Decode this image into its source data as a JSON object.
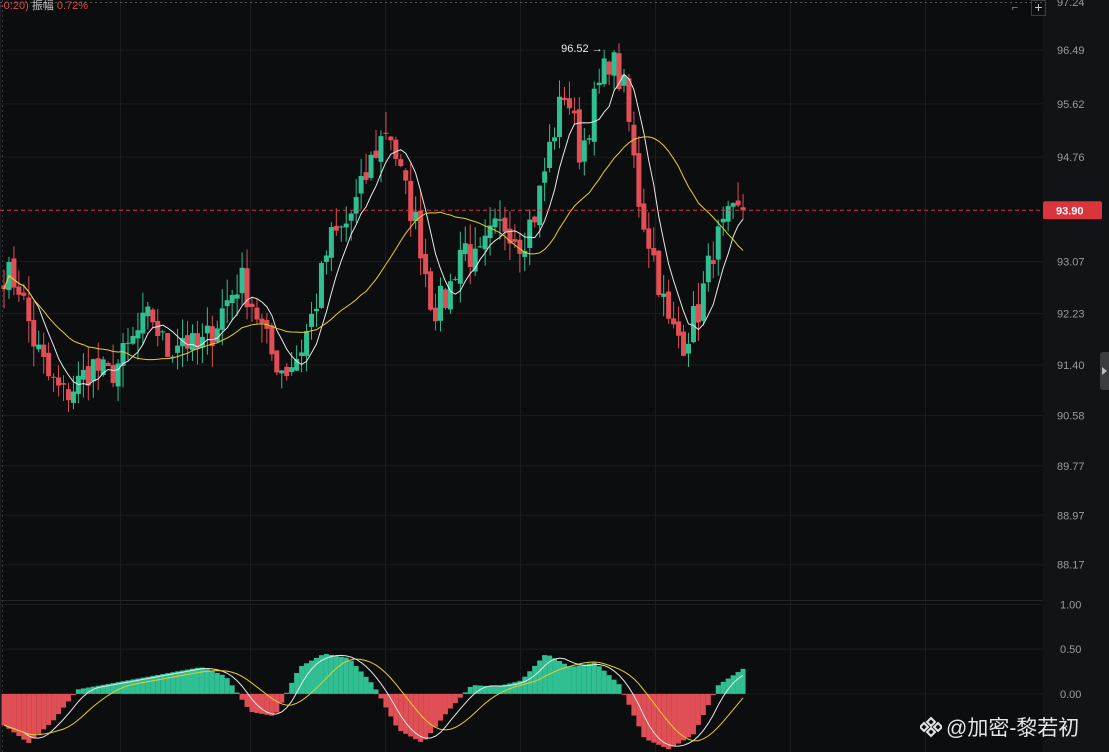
{
  "header": {
    "prefix": "-0:20)",
    "amp_label": "振幅",
    "amp_value": "0.72%"
  },
  "watermark": {
    "text": "@加密-黎若初"
  },
  "colors": {
    "up": "#2fbf92",
    "down": "#e04f55",
    "ma_fast": "#e8e8e8",
    "ma_slow": "#e6cf2a",
    "price_tag": "#d9353b",
    "grid": "#1b1d21",
    "text": "#9b9b9b"
  },
  "icons": {
    "add": "plus-icon",
    "tool": "crop-icon",
    "panel": "chevron-right-icon",
    "logo": "binance-logo-icon"
  },
  "chart_data": [
    {
      "type": "candlestick",
      "y_ticks": [
        96.49,
        95.62,
        94.76,
        93.07,
        92.23,
        91.4,
        90.58,
        89.77,
        88.97,
        88.17
      ],
      "top_tick": "97.24",
      "ylim": [
        87.6,
        97.3
      ],
      "high_marker": {
        "label": "96.52",
        "value": 96.52
      },
      "current_price": {
        "label": "93.90",
        "value": 93.9
      },
      "grid": true,
      "ohlc_anchor_closes": [
        92.9,
        92.7,
        91.8,
        91.2,
        90.9,
        91.1,
        91.4,
        91.2,
        91.5,
        91.9,
        92.2,
        91.6,
        91.9,
        91.6,
        91.9,
        92.4,
        92.8,
        92.3,
        91.6,
        91.3,
        91.6,
        92.3,
        93.4,
        93.6,
        94.1,
        94.8,
        95.3,
        94.3,
        93.6,
        92.3,
        92.5,
        93.4,
        93.0,
        93.5,
        93.7,
        93.4,
        93.9,
        95.0,
        95.9,
        94.8,
        95.7,
        96.4,
        95.8,
        94.0,
        93.1,
        92.0,
        91.8,
        92.3,
        93.3,
        93.7,
        93.9
      ]
    },
    {
      "type": "histogram",
      "y_ticks": [
        "1.00",
        "0.50",
        "0.00"
      ],
      "ylim": [
        -0.65,
        1.05
      ],
      "anchor_values": [
        -0.35,
        -0.55,
        -0.3,
        0.05,
        0.1,
        0.15,
        0.2,
        0.25,
        0.3,
        0.2,
        -0.2,
        -0.25,
        0.3,
        0.45,
        0.4,
        0.1,
        -0.4,
        -0.55,
        -0.2,
        0.1,
        0.08,
        0.15,
        0.45,
        0.3,
        0.35,
        0.1,
        -0.5,
        -0.62,
        -0.45,
        0.1,
        0.28
      ]
    }
  ]
}
